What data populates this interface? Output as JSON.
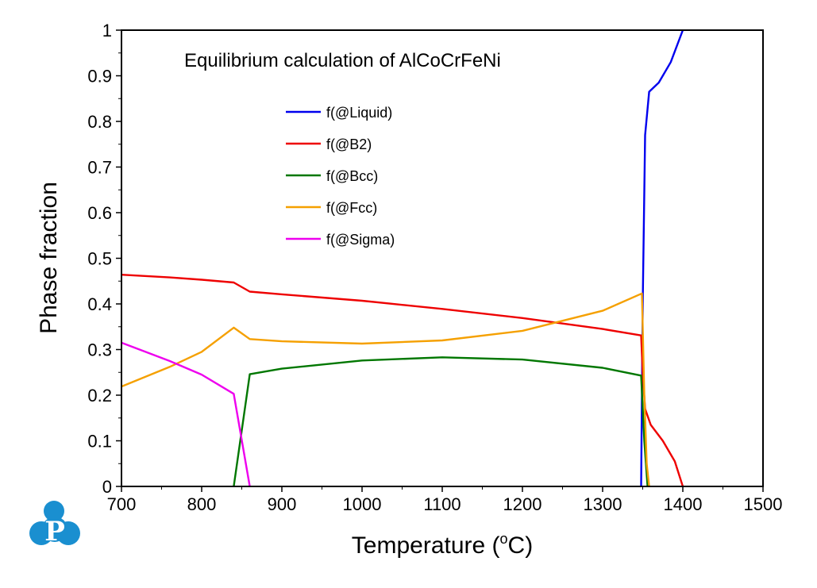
{
  "chart_data": {
    "type": "line",
    "title": "Equilibrium calculation of AlCoCrFeNi",
    "xlabel": "Temperature (",
    "xlabel_sup": "o",
    "xlabel_end": "C)",
    "ylabel": "Phase fraction",
    "xlim": [
      700,
      1500
    ],
    "ylim": [
      0,
      1
    ],
    "x_ticks": [
      "700",
      "800",
      "900",
      "1000",
      "1100",
      "1200",
      "1300",
      "1400",
      "1500"
    ],
    "y_ticks": [
      "0",
      "0.1",
      "0.2",
      "0.3",
      "0.4",
      "0.5",
      "0.6",
      "0.7",
      "0.8",
      "0.9",
      "1"
    ],
    "grid": false,
    "legend_position": "upper-left",
    "series": [
      {
        "name": "f(@Liquid)",
        "color": "#0000ee",
        "points": [
          [
            1348,
            0
          ],
          [
            1350,
            0.4
          ],
          [
            1353,
            0.77
          ],
          [
            1358,
            0.865
          ],
          [
            1370,
            0.885
          ],
          [
            1385,
            0.93
          ],
          [
            1400,
            1.0
          ]
        ]
      },
      {
        "name": "f(@B2)",
        "color": "#ee0000",
        "points": [
          [
            700,
            0.464
          ],
          [
            760,
            0.458
          ],
          [
            800,
            0.453
          ],
          [
            840,
            0.447
          ],
          [
            860,
            0.427
          ],
          [
            900,
            0.421
          ],
          [
            1000,
            0.407
          ],
          [
            1100,
            0.389
          ],
          [
            1200,
            0.369
          ],
          [
            1300,
            0.345
          ],
          [
            1348,
            0.331
          ],
          [
            1350,
            0.25
          ],
          [
            1353,
            0.17
          ],
          [
            1360,
            0.135
          ],
          [
            1375,
            0.1
          ],
          [
            1390,
            0.055
          ],
          [
            1400,
            0
          ]
        ]
      },
      {
        "name": "f(@Bcc)",
        "color": "#007700",
        "points": [
          [
            840,
            0
          ],
          [
            860,
            0.246
          ],
          [
            900,
            0.258
          ],
          [
            1000,
            0.276
          ],
          [
            1100,
            0.283
          ],
          [
            1200,
            0.278
          ],
          [
            1300,
            0.26
          ],
          [
            1348,
            0.243
          ],
          [
            1352,
            0.1
          ],
          [
            1356,
            0
          ]
        ]
      },
      {
        "name": "f(@Fcc)",
        "color": "#f5a000",
        "points": [
          [
            700,
            0.219
          ],
          [
            760,
            0.262
          ],
          [
            800,
            0.295
          ],
          [
            840,
            0.348
          ],
          [
            860,
            0.323
          ],
          [
            900,
            0.318
          ],
          [
            1000,
            0.313
          ],
          [
            1100,
            0.32
          ],
          [
            1200,
            0.341
          ],
          [
            1300,
            0.385
          ],
          [
            1349,
            0.423
          ],
          [
            1352,
            0.2
          ],
          [
            1355,
            0.05
          ],
          [
            1358,
            0
          ]
        ]
      },
      {
        "name": "f(@Sigma)",
        "color": "#ee00ee",
        "points": [
          [
            700,
            0.315
          ],
          [
            760,
            0.275
          ],
          [
            800,
            0.245
          ],
          [
            840,
            0.203
          ],
          [
            860,
            0
          ]
        ]
      }
    ]
  },
  "logo": {
    "letter": "P",
    "color": "#1a8fd0"
  }
}
